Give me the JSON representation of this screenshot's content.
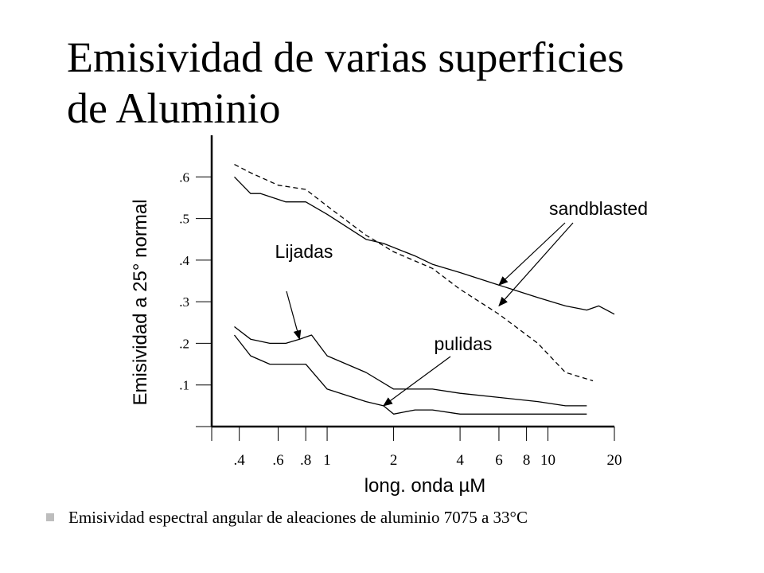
{
  "title": {
    "line1": "Emisividad de varias superficies",
    "line2": "de Aluminio"
  },
  "caption": "Emisividad espectral angular de aleaciones de aluminio 7075 a 33°C",
  "colors": {
    "line": "#000000",
    "bullet": "#bdbdbd"
  },
  "chart_data": {
    "type": "line",
    "title": "",
    "xlabel": "long. onda µM",
    "ylabel": "Emisividad  a 25°  normal",
    "xscale": "log",
    "xlim": [
      0.3,
      20
    ],
    "ylim": [
      0,
      0.7
    ],
    "x_ticks": [
      {
        "value": 0.4,
        "label": ".4"
      },
      {
        "value": 0.6,
        "label": ".6"
      },
      {
        "value": 0.8,
        "label": ".8"
      },
      {
        "value": 1,
        "label": "1"
      },
      {
        "value": 2,
        "label": "2"
      },
      {
        "value": 4,
        "label": "4"
      },
      {
        "value": 6,
        "label": "6"
      },
      {
        "value": 8,
        "label": "8"
      },
      {
        "value": 10,
        "label": "10"
      },
      {
        "value": 20,
        "label": "20"
      }
    ],
    "y_ticks": [
      {
        "value": 0.1,
        "label": ".1"
      },
      {
        "value": 0.2,
        "label": ".2"
      },
      {
        "value": 0.3,
        "label": ".3"
      },
      {
        "value": 0.4,
        "label": ".4"
      },
      {
        "value": 0.5,
        "label": ".5"
      },
      {
        "value": 0.6,
        "label": ".6"
      }
    ],
    "grid": false,
    "series": [
      {
        "style": "dashed",
        "x": [
          0.38,
          0.45,
          0.6,
          0.8,
          1.0,
          1.5,
          2.0,
          3.0,
          4.0,
          6.0,
          9.0,
          12.0,
          16.0
        ],
        "y": [
          0.63,
          0.61,
          0.58,
          0.57,
          0.53,
          0.46,
          0.42,
          0.38,
          0.33,
          0.27,
          0.2,
          0.13,
          0.11
        ]
      },
      {
        "style": "solid",
        "x": [
          0.38,
          0.45,
          0.5,
          0.65,
          0.8,
          1.0,
          1.5,
          1.8,
          2.5,
          3.0,
          4.0,
          6.0,
          9.0,
          12.0,
          15.0,
          17.0,
          20.0
        ],
        "y": [
          0.6,
          0.56,
          0.56,
          0.54,
          0.54,
          0.51,
          0.45,
          0.44,
          0.41,
          0.39,
          0.37,
          0.34,
          0.31,
          0.29,
          0.28,
          0.29,
          0.27
        ]
      },
      {
        "style": "solid",
        "x": [
          0.38,
          0.45,
          0.55,
          0.65,
          0.75,
          0.85,
          1.0,
          1.5,
          2.0,
          3.0,
          4.0,
          6.0,
          9.0,
          12.0,
          15.0
        ],
        "y": [
          0.24,
          0.21,
          0.2,
          0.2,
          0.21,
          0.22,
          0.17,
          0.13,
          0.09,
          0.09,
          0.08,
          0.07,
          0.06,
          0.05,
          0.05
        ]
      },
      {
        "style": "solid",
        "x": [
          0.38,
          0.45,
          0.55,
          0.65,
          0.8,
          1.0,
          1.5,
          1.8,
          2.0,
          2.5,
          3.0,
          4.0,
          6.0,
          9.0,
          12.0,
          15.0
        ],
        "y": [
          0.22,
          0.17,
          0.15,
          0.15,
          0.15,
          0.09,
          0.06,
          0.05,
          0.03,
          0.04,
          0.04,
          0.03,
          0.03,
          0.03,
          0.03,
          0.03
        ]
      }
    ],
    "annotations": [
      {
        "text": "sandblasted",
        "arrows_to": [
          {
            "x": 6.0,
            "y": 0.34
          },
          {
            "x": 6.0,
            "y": 0.29
          }
        ]
      },
      {
        "text": "Lijadas",
        "arrows_to": [
          {
            "x": 0.75,
            "y": 0.21
          }
        ]
      },
      {
        "text": "pulidas",
        "arrows_to": [
          {
            "x": 1.8,
            "y": 0.05
          }
        ]
      }
    ]
  }
}
